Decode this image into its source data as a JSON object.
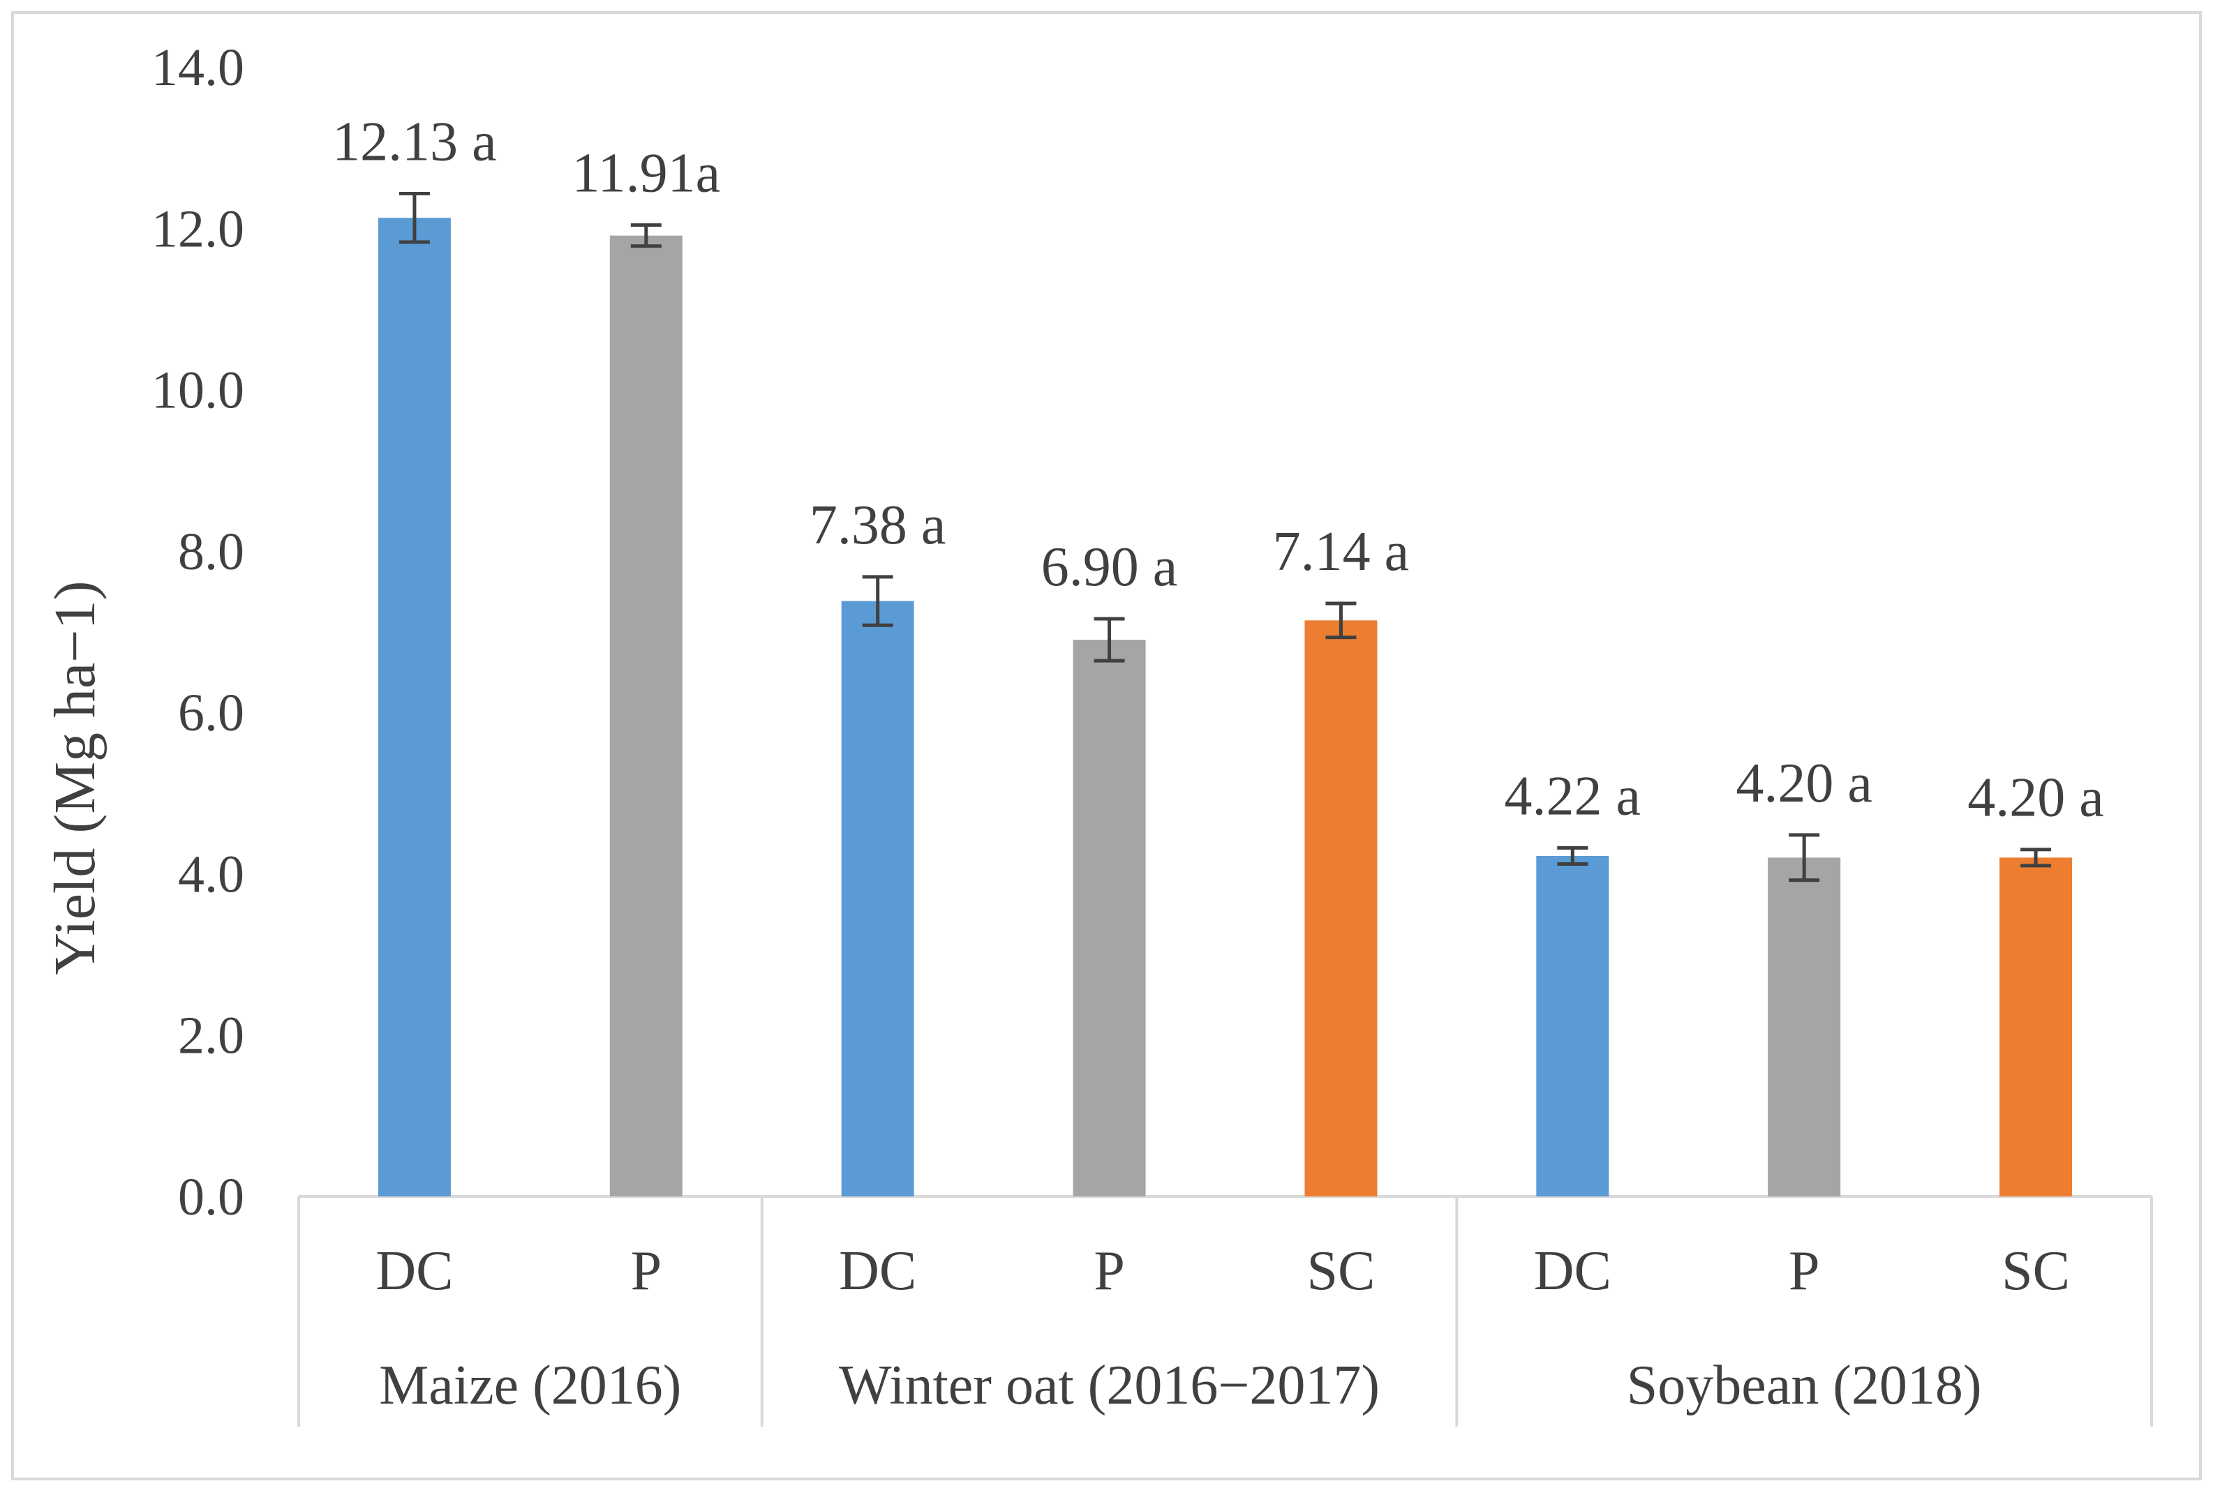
{
  "chart_data": {
    "type": "bar",
    "ylabel": "Yield (Mg ha−1)",
    "ylim": [
      0,
      14
    ],
    "yticks": [
      "0.0",
      "2.0",
      "4.0",
      "6.0",
      "8.0",
      "10.0",
      "12.0",
      "14.0"
    ],
    "grid": false,
    "groups": [
      {
        "label": "Maize (2016)",
        "bars": [
          {
            "category": "DC",
            "value": 12.13,
            "error": 0.3,
            "label": "12.13 a",
            "color": "#5b9bd5"
          },
          {
            "category": "P",
            "value": 11.91,
            "error": 0.13,
            "label": "11.91a",
            "color": "#a5a5a5"
          }
        ]
      },
      {
        "label": "Winter oat (2016−2017)",
        "bars": [
          {
            "category": "DC",
            "value": 7.38,
            "error": 0.3,
            "label": "7.38 a",
            "color": "#5b9bd5"
          },
          {
            "category": "P",
            "value": 6.9,
            "error": 0.26,
            "label": "6.90 a",
            "color": "#a5a5a5"
          },
          {
            "category": "SC",
            "value": 7.14,
            "error": 0.21,
            "label": "7.14 a",
            "color": "#ed7d31"
          }
        ]
      },
      {
        "label": "Soybean (2018)",
        "bars": [
          {
            "category": "DC",
            "value": 4.22,
            "error": 0.1,
            "label": "4.22 a",
            "color": "#5b9bd5"
          },
          {
            "category": "P",
            "value": 4.2,
            "error": 0.28,
            "label": "4.20 a",
            "color": "#a5a5a5"
          },
          {
            "category": "SC",
            "value": 4.2,
            "error": 0.1,
            "label": "4.20 a",
            "color": "#ed7d31"
          }
        ]
      }
    ]
  }
}
